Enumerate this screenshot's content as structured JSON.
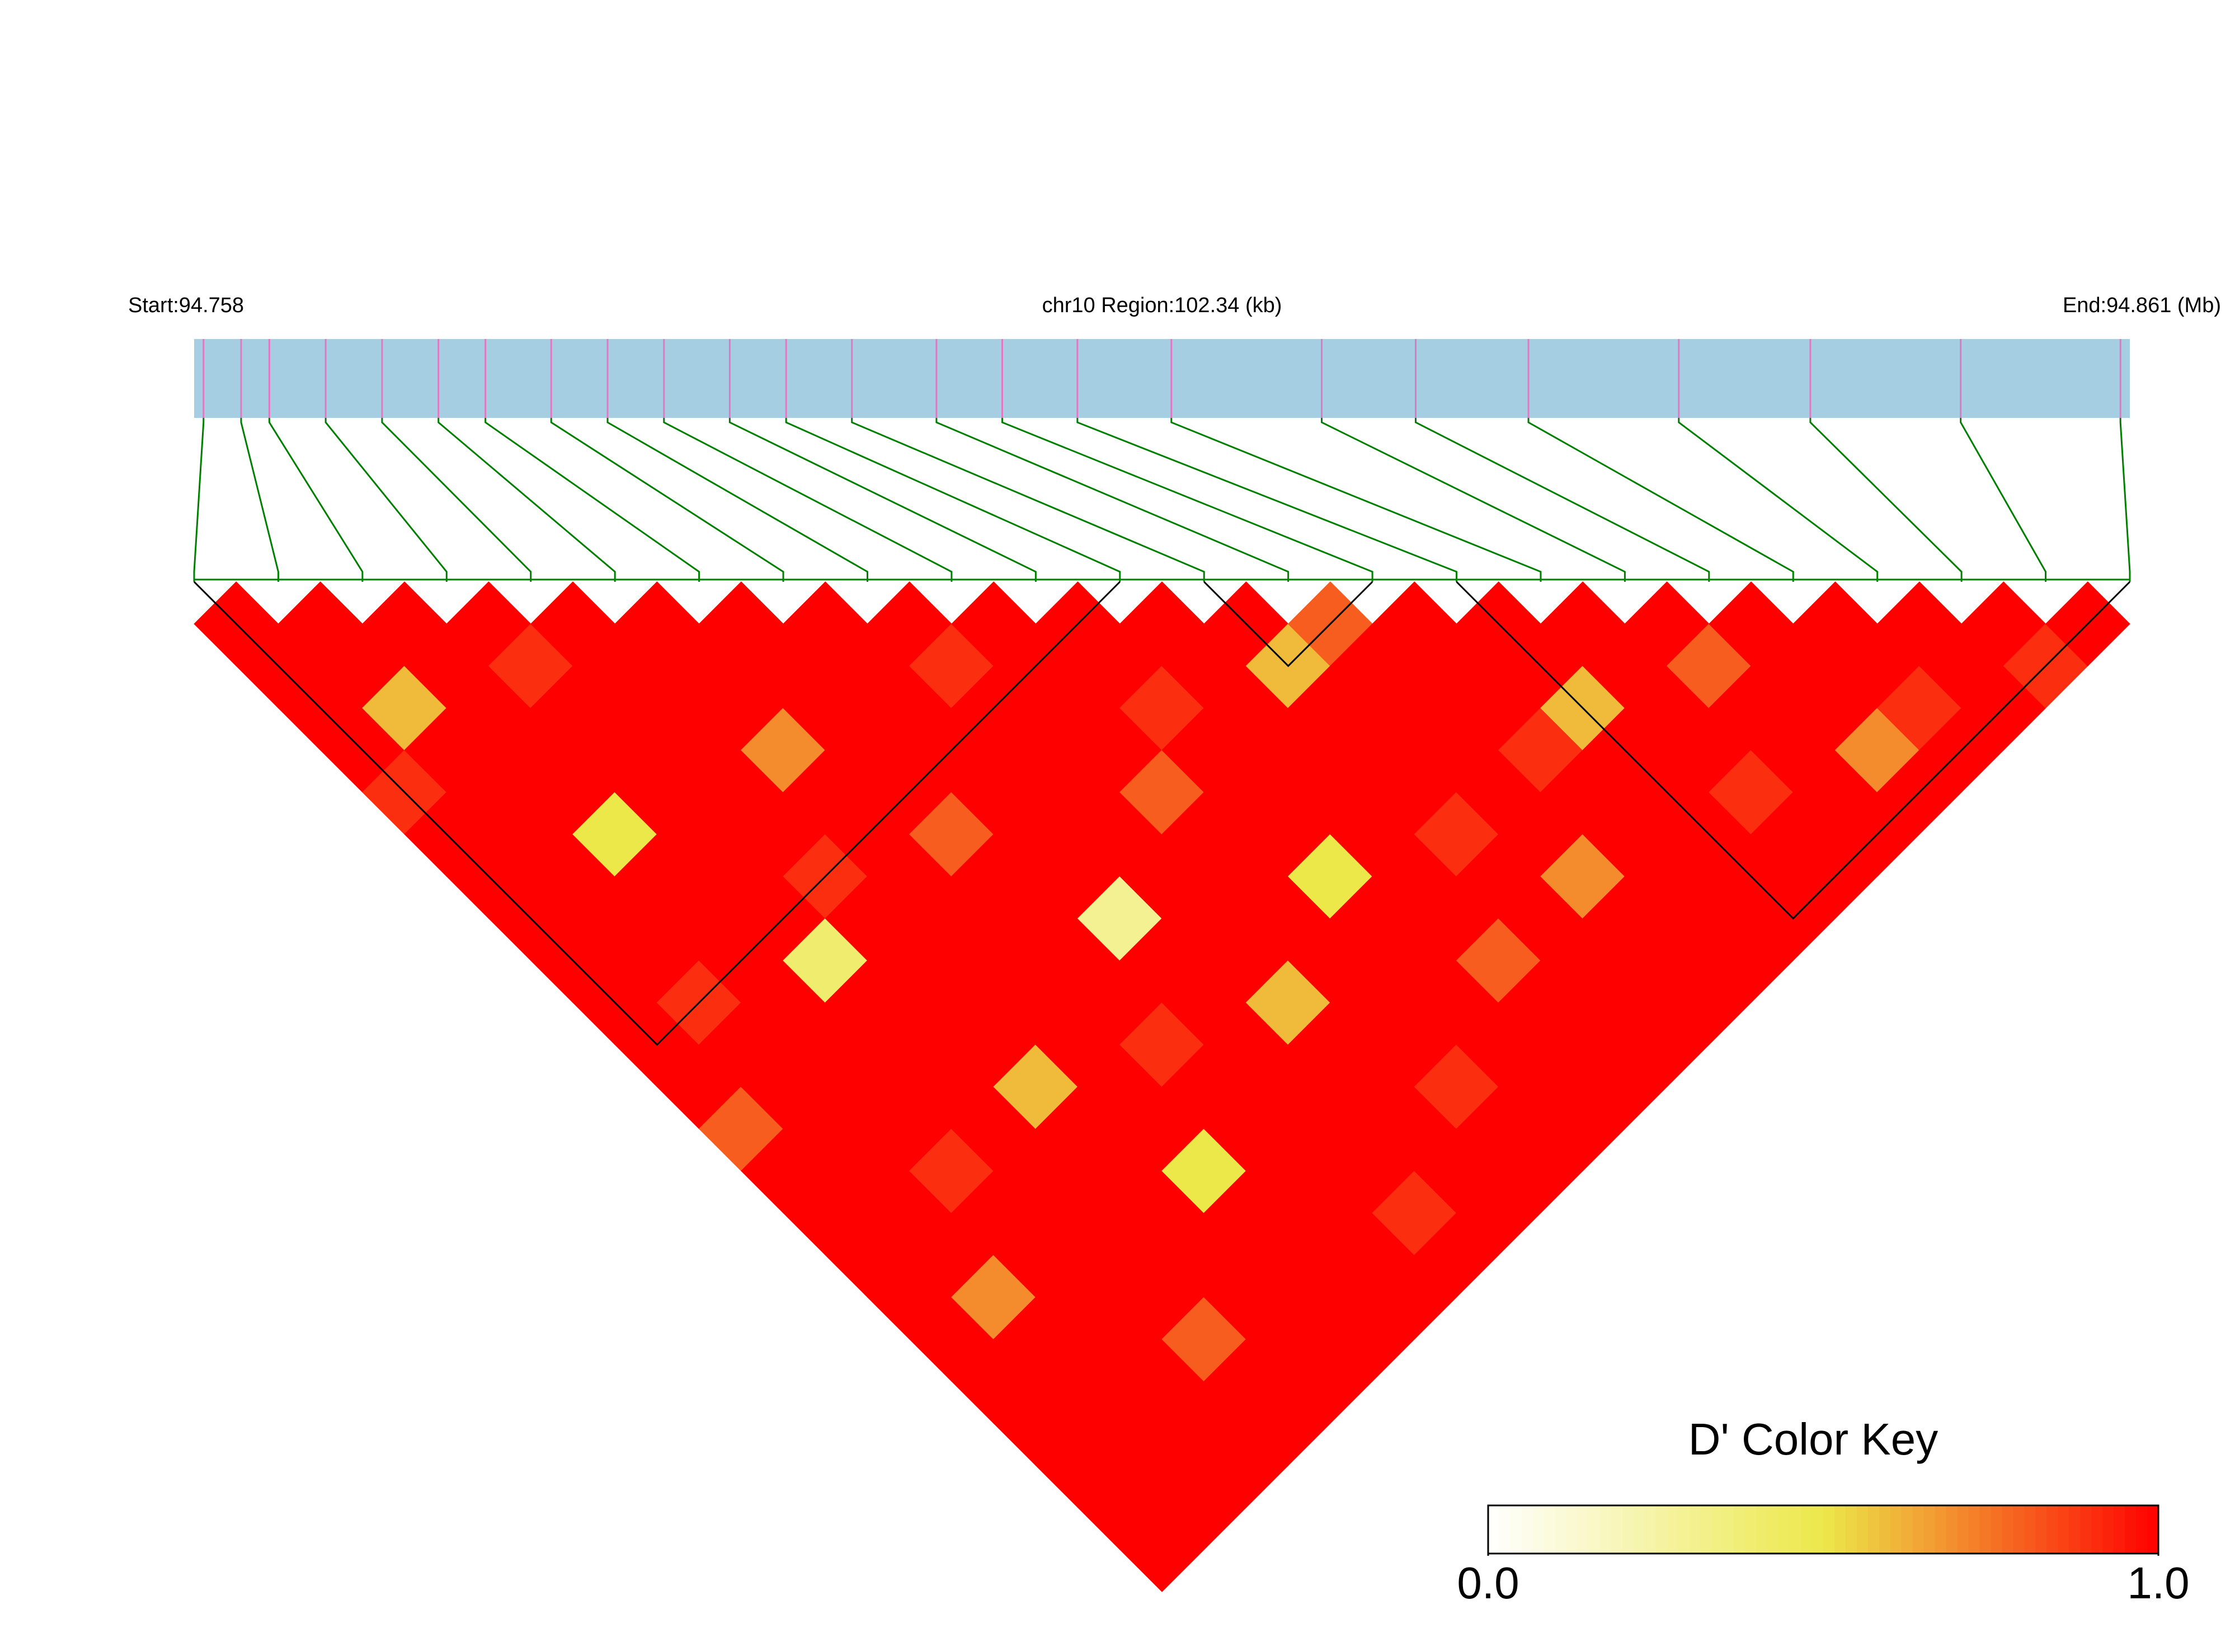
{
  "chart_data": {
    "type": "ld_heatmap",
    "title": "chr10 Region:102.34 (kb)",
    "start_label": "Start:94.758",
    "end_label": "End:94.861 (Mb)",
    "xlim": [
      94.758,
      94.861
    ],
    "snp_positions": [
      94.7585,
      94.7605,
      94.762,
      94.765,
      94.768,
      94.771,
      94.7735,
      94.777,
      94.78,
      94.783,
      94.7865,
      94.7895,
      94.793,
      94.7975,
      94.801,
      94.805,
      94.81,
      94.818,
      94.823,
      94.829,
      94.837,
      94.844,
      94.852,
      94.8605
    ],
    "track_color": "#a6cee3",
    "snp_color": "#e377c2",
    "link_color": "#008000",
    "values": [
      [
        1,
        1,
        1,
        1,
        0.9,
        1,
        1,
        1,
        1,
        1,
        1,
        1,
        0.8,
        1,
        1,
        1,
        1,
        1,
        1,
        1,
        1,
        1,
        1
      ],
      [
        1,
        1,
        0.6,
        1,
        1,
        1,
        1,
        1,
        1,
        0.9,
        1,
        1,
        1,
        1,
        1,
        1,
        0.7,
        1,
        1,
        1,
        1,
        1
      ],
      [
        1,
        1,
        1,
        1,
        1,
        0.5,
        1,
        1,
        1,
        1,
        1,
        1,
        1,
        0.9,
        1,
        1,
        1,
        1,
        1,
        1,
        1
      ],
      [
        1,
        0.9,
        1,
        1,
        1,
        1,
        1,
        1,
        0.4,
        1,
        1,
        1,
        1,
        1,
        1,
        1,
        1,
        0.8,
        1,
        1
      ],
      [
        1,
        1,
        1,
        1,
        1,
        1,
        0.9,
        1,
        1,
        1,
        1,
        0.6,
        1,
        1,
        1,
        1,
        1,
        1,
        1
      ],
      [
        1,
        1,
        1,
        0.7,
        1,
        1,
        1,
        1,
        1,
        1,
        1,
        1,
        1,
        0.5,
        1,
        1,
        1,
        1
      ],
      [
        1,
        1,
        1,
        1,
        1,
        0.8,
        1,
        1,
        1,
        1,
        0.9,
        1,
        1,
        1,
        1,
        1,
        1
      ],
      [
        1,
        1,
        1,
        1,
        1,
        1,
        1,
        0.3,
        1,
        1,
        1,
        1,
        1,
        1,
        0.9,
        1
      ],
      [
        1,
        0.9,
        1,
        1,
        1,
        1,
        1,
        1,
        1,
        0.6,
        1,
        1,
        1,
        1,
        1
      ],
      [
        1,
        1,
        1,
        1,
        0.8,
        1,
        1,
        1,
        1,
        1,
        1,
        0.9,
        1,
        1
      ],
      [
        1,
        1,
        0.9,
        1,
        1,
        1,
        0.5,
        1,
        1,
        1,
        1,
        1,
        1
      ],
      [
        1,
        1,
        1,
        1,
        1,
        1,
        1,
        1,
        0.8,
        1,
        1,
        1
      ],
      [
        1,
        0.6,
        1,
        1,
        1,
        0.9,
        1,
        1,
        1,
        1,
        1
      ],
      [
        0.8,
        1,
        1,
        1,
        1,
        1,
        0.7,
        1,
        1,
        1
      ],
      [
        1,
        1,
        1,
        0.9,
        1,
        1,
        1,
        1,
        1
      ],
      [
        1,
        1,
        0.6,
        1,
        1,
        1,
        1,
        1
      ],
      [
        1,
        1,
        1,
        1,
        0.9,
        1,
        1
      ],
      [
        1,
        0.8,
        1,
        1,
        1,
        1
      ],
      [
        1,
        1,
        1,
        0.7,
        1
      ],
      [
        1,
        1,
        0.9,
        1
      ],
      [
        1,
        1,
        1
      ],
      [
        1,
        0.9
      ],
      [
        1
      ]
    ],
    "blocks": [
      [
        0,
        11
      ],
      [
        12,
        14
      ],
      [
        15,
        23
      ]
    ],
    "color_key": {
      "title": "D' Color Key",
      "colors": [
        "#ffffff",
        "#ece84a",
        "#ff0000"
      ],
      "ticks": [
        {
          "value": 0,
          "label": "0.0"
        },
        {
          "value": 1,
          "label": "1.0"
        }
      ]
    }
  }
}
